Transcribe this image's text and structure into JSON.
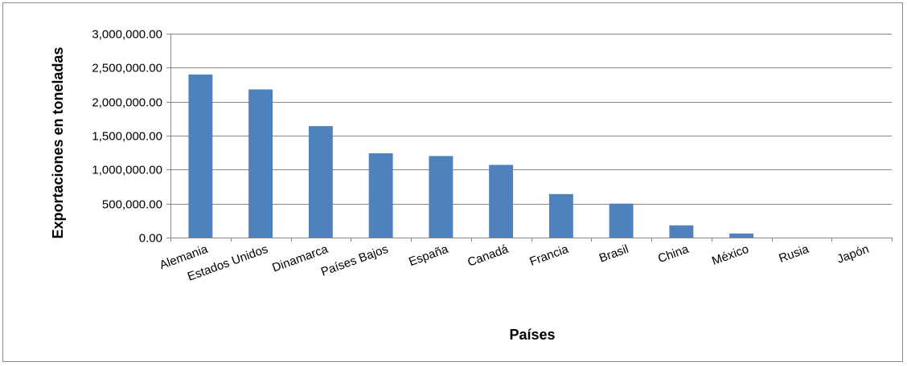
{
  "chart_data": {
    "type": "bar",
    "title": "",
    "xlabel": "Países",
    "ylabel": "Exportaciones en toneladas",
    "categories": [
      "Alemania",
      "Estados Unidos",
      "Dinamarca",
      "Países Bajos",
      "España",
      "Canadá",
      "Francia",
      "Brasil",
      "China",
      "México",
      "Rusia",
      "Japón"
    ],
    "values": [
      2400000,
      2180000,
      1640000,
      1240000,
      1200000,
      1070000,
      640000,
      500000,
      180000,
      60000,
      0,
      0
    ],
    "ylim": [
      0,
      3000000
    ],
    "yticks": [
      0,
      500000,
      1000000,
      1500000,
      2000000,
      2500000,
      3000000
    ],
    "ytick_labels": [
      "0.00",
      "500,000.00",
      "1,000,000.00",
      "1,500,000.00",
      "2,000,000.00",
      "2,500,000.00",
      "3,000,000.00"
    ],
    "grid": true,
    "legend": "none",
    "colors": {
      "bar": "#4f81bd",
      "grid": "#868686",
      "axis": "#868686"
    }
  }
}
